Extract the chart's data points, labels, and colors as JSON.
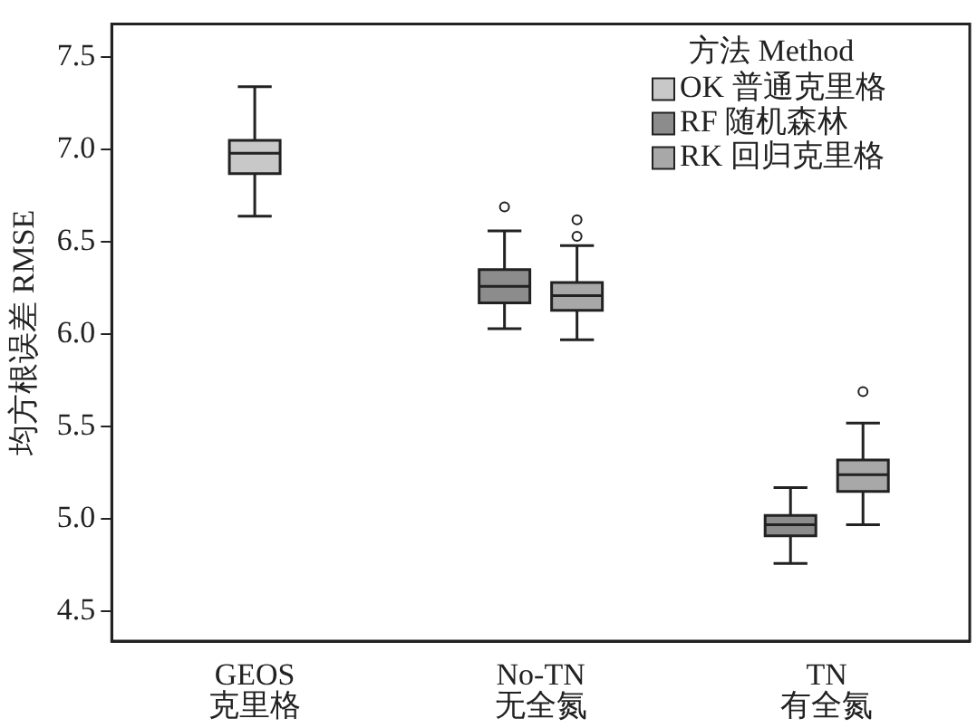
{
  "chart_data": {
    "type": "box",
    "ylabel": "均方根误差 RMSE",
    "legend_title": "方法 Method",
    "legend": "top right",
    "categories": [
      "GEOS 克里格",
      "No-TN 无全氮",
      "TN 有全氮"
    ],
    "ylim": [
      4.34,
      7.68
    ],
    "yticks": [
      {
        "value": 4.5,
        "label": "4.5"
      },
      {
        "value": 5,
        "label": "5.0"
      },
      {
        "value": 5.5,
        "label": "5.5"
      },
      {
        "value": 6,
        "label": "6.0"
      },
      {
        "value": 6.5,
        "label": "6.5"
      },
      {
        "value": 7,
        "label": "7.0"
      },
      {
        "value": 7.5,
        "label": "7.5"
      }
    ],
    "series": [
      {
        "name": "OK 普通克里格",
        "color": "#c8c8c8",
        "boxes": [
          {
            "low": 6.64,
            "q1": 6.87,
            "median": 6.98,
            "q3": 7.05,
            "high": 7.34
          },
          null,
          null
        ]
      },
      {
        "name": "RF 随机森林",
        "color": "#8c8c8c",
        "boxes": [
          null,
          {
            "low": 6.03,
            "q1": 6.17,
            "median": 6.26,
            "q3": 6.35,
            "high": 6.56,
            "outliers": [
              6.69
            ]
          },
          {
            "low": 4.76,
            "q1": 4.91,
            "median": 4.97,
            "q3": 5.02,
            "high": 5.17
          }
        ]
      },
      {
        "name": "RK 回归克里格",
        "color": "#a8a8a8",
        "boxes": [
          null,
          {
            "low": 5.97,
            "q1": 6.13,
            "median": 6.21,
            "q3": 6.28,
            "high": 6.48,
            "outliers": [
              6.53,
              6.62
            ]
          },
          {
            "low": 4.97,
            "q1": 5.15,
            "median": 5.24,
            "q3": 5.32,
            "high": 5.52,
            "outliers": [
              5.69
            ]
          }
        ]
      }
    ]
  }
}
